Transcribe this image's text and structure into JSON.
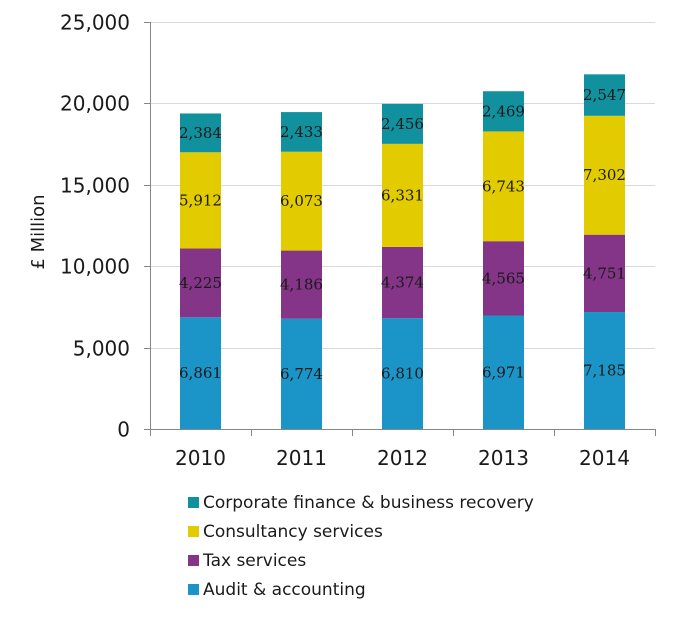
{
  "chart_data": {
    "type": "bar",
    "stacked": true,
    "title": "",
    "xlabel": "",
    "ylabel": "£ Million",
    "ylim": [
      0,
      25000
    ],
    "yticks": [
      0,
      5000,
      10000,
      15000,
      20000,
      25000
    ],
    "ytick_labels": [
      "0",
      "5,000",
      "10,000",
      "15,000",
      "20,000",
      "25,000"
    ],
    "grid": true,
    "legend_position": "bottom",
    "categories": [
      "2010",
      "2011",
      "2012",
      "2013",
      "2014"
    ],
    "series": [
      {
        "name": "Audit & accounting",
        "color": "#1b95c8",
        "values": [
          6861,
          6774,
          6810,
          6971,
          7185
        ],
        "labels": [
          "6,861",
          "6,774",
          "6,810",
          "6,971",
          "7,185"
        ]
      },
      {
        "name": "Tax services",
        "color": "#843588",
        "values": [
          4225,
          4186,
          4374,
          4565,
          4751
        ],
        "labels": [
          "4,225",
          "4,186",
          "4,374",
          "4,565",
          "4,751"
        ]
      },
      {
        "name": "Consultancy services",
        "color": "#e2cc00",
        "values": [
          5912,
          6073,
          6331,
          6743,
          7302
        ],
        "labels": [
          "5,912",
          "6,073",
          "6,331",
          "6,743",
          "7,302"
        ]
      },
      {
        "name": "Corporate finance & business recovery",
        "color": "#11919e",
        "values": [
          2384,
          2433,
          2456,
          2469,
          2547
        ],
        "labels": [
          "2,384",
          "2,433",
          "2,456",
          "2,469",
          "2,547"
        ]
      }
    ],
    "legend_order": [
      "Corporate finance & business recovery",
      "Consultancy services",
      "Tax services",
      "Audit & accounting"
    ]
  }
}
